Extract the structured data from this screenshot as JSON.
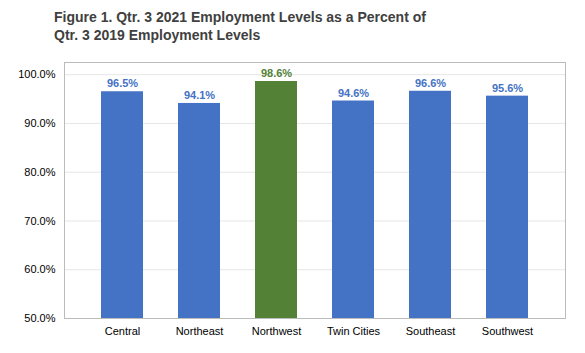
{
  "chart_data": {
    "type": "bar",
    "title": "Figure 1. Qtr. 3 2021 Employment Levels as a Percent of\nQtr. 3 2019 Employment Levels",
    "categories": [
      "Central",
      "Northeast",
      "Northwest",
      "Twin Cities",
      "Southeast",
      "Southwest"
    ],
    "values": [
      96.5,
      94.1,
      98.6,
      94.6,
      96.6,
      95.6
    ],
    "value_labels": [
      "96.5%",
      "94.1%",
      "98.6%",
      "94.6%",
      "96.6%",
      "95.6%"
    ],
    "colors": [
      "#4472C4",
      "#4472C4",
      "#538135",
      "#4472C4",
      "#4472C4",
      "#4472C4"
    ],
    "ylim": [
      50.0,
      102.5
    ],
    "yticks": [
      {
        "value": 50,
        "label": "50.0%"
      },
      {
        "value": 60,
        "label": "60.0%"
      },
      {
        "value": 70,
        "label": "70.0%"
      },
      {
        "value": 80,
        "label": "80.0%"
      },
      {
        "value": 90,
        "label": "90.0%"
      },
      {
        "value": 100,
        "label": "100.0%"
      }
    ],
    "grid": true,
    "data_labels": true
  }
}
